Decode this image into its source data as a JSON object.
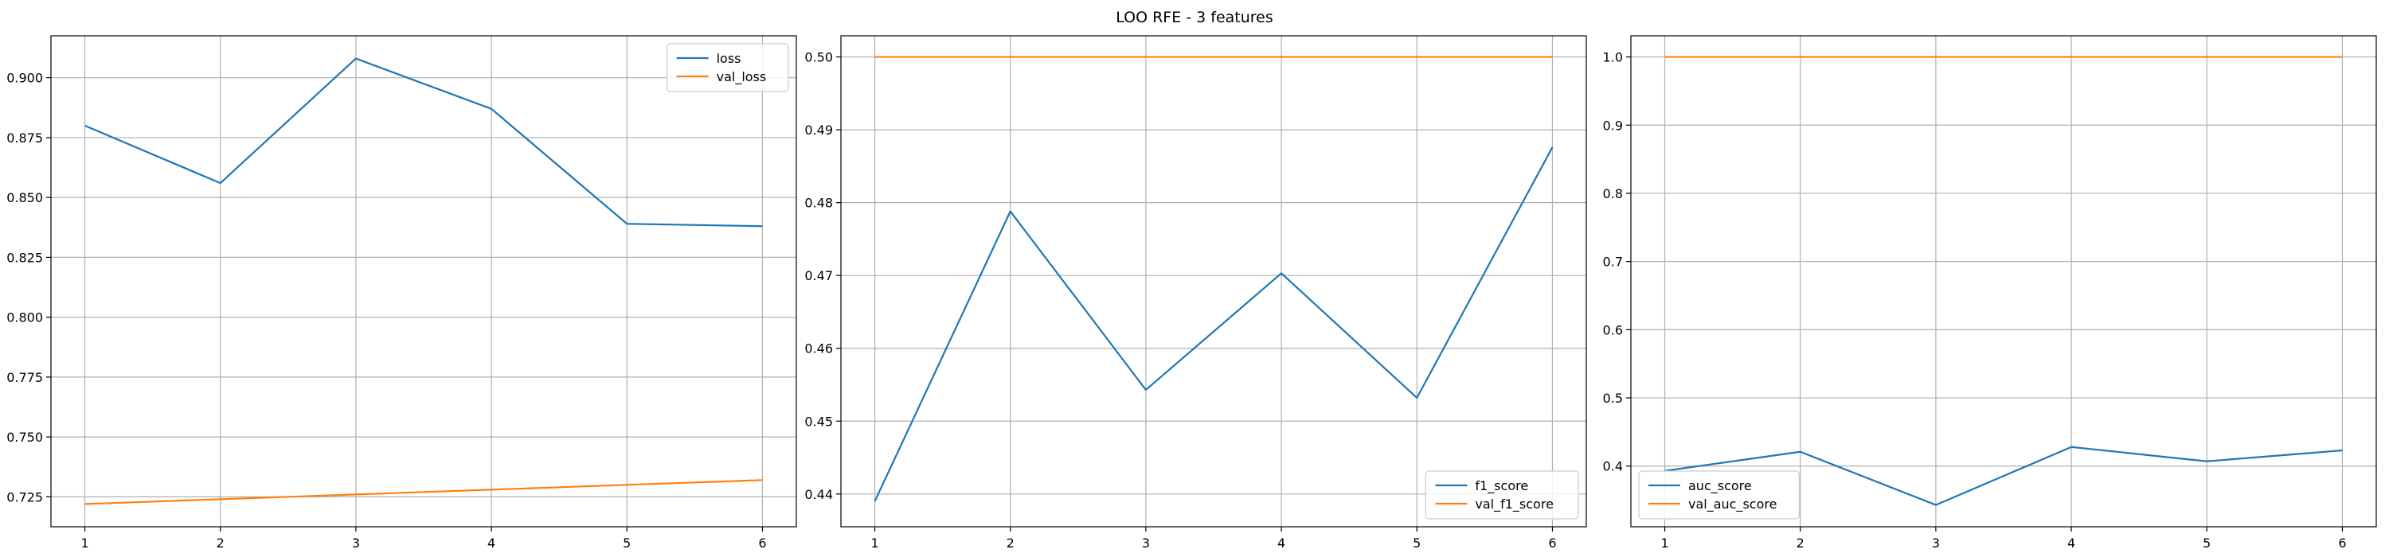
{
  "figure": {
    "title": "LOO RFE - 3 features"
  },
  "chart_data": [
    {
      "type": "line",
      "title": "",
      "xlabel": "",
      "ylabel": "",
      "x": [
        1,
        2,
        3,
        4,
        5,
        6
      ],
      "xticks": [
        1,
        2,
        3,
        4,
        5,
        6
      ],
      "xtick_labels": [
        "1",
        "2",
        "3",
        "4",
        "5",
        "6"
      ],
      "xlim": [
        0.75,
        6.25
      ],
      "ylim": [
        0.7125,
        0.9175
      ],
      "yticks": [
        0.725,
        0.75,
        0.775,
        0.8,
        0.825,
        0.85,
        0.875,
        0.9
      ],
      "ytick_labels": [
        "0.725",
        "0.750",
        "0.775",
        "0.800",
        "0.825",
        "0.850",
        "0.875",
        "0.900"
      ],
      "grid": true,
      "legend": "top-right",
      "series": [
        {
          "name": "loss",
          "color": "#1f77b4",
          "values": [
            0.88,
            0.856,
            0.908,
            0.887,
            0.839,
            0.838
          ]
        },
        {
          "name": "val_loss",
          "color": "#ff7f0e",
          "values": [
            0.722,
            0.724,
            0.726,
            0.728,
            0.73,
            0.732
          ]
        }
      ]
    },
    {
      "type": "line",
      "title": "",
      "xlabel": "",
      "ylabel": "",
      "x": [
        1,
        2,
        3,
        4,
        5,
        6
      ],
      "xticks": [
        1,
        2,
        3,
        4,
        5,
        6
      ],
      "xtick_labels": [
        "1",
        "2",
        "3",
        "4",
        "5",
        "6"
      ],
      "xlim": [
        0.75,
        6.25
      ],
      "ylim": [
        0.4355,
        0.5029
      ],
      "yticks": [
        0.44,
        0.45,
        0.46,
        0.47,
        0.48,
        0.49,
        0.5
      ],
      "ytick_labels": [
        "0.44",
        "0.45",
        "0.46",
        "0.47",
        "0.48",
        "0.49",
        "0.50"
      ],
      "grid": true,
      "legend": "bottom-right",
      "series": [
        {
          "name": "f1_score",
          "color": "#1f77b4",
          "values": [
            0.439,
            0.4788,
            0.4543,
            0.4703,
            0.4532,
            0.4876
          ]
        },
        {
          "name": "val_f1_score",
          "color": "#ff7f0e",
          "values": [
            0.5,
            0.5,
            0.5,
            0.5,
            0.5,
            0.5
          ]
        }
      ]
    },
    {
      "type": "line",
      "title": "",
      "xlabel": "",
      "ylabel": "",
      "x": [
        1,
        2,
        3,
        4,
        5,
        6
      ],
      "xticks": [
        1,
        2,
        3,
        4,
        5,
        6
      ],
      "xtick_labels": [
        "1",
        "2",
        "3",
        "4",
        "5",
        "6"
      ],
      "xlim": [
        0.75,
        6.25
      ],
      "ylim": [
        0.311,
        1.031
      ],
      "yticks": [
        0.4,
        0.5,
        0.6,
        0.7,
        0.8,
        0.9,
        1.0
      ],
      "ytick_labels": [
        "0.4",
        "0.5",
        "0.6",
        "0.7",
        "0.8",
        "0.9",
        "1.0"
      ],
      "grid": true,
      "legend": "bottom-left",
      "series": [
        {
          "name": "auc_score",
          "color": "#1f77b4",
          "values": [
            0.393,
            0.421,
            0.343,
            0.428,
            0.407,
            0.423
          ]
        },
        {
          "name": "val_auc_score",
          "color": "#ff7f0e",
          "values": [
            1.0,
            1.0,
            1.0,
            1.0,
            1.0,
            1.0
          ]
        }
      ]
    }
  ]
}
